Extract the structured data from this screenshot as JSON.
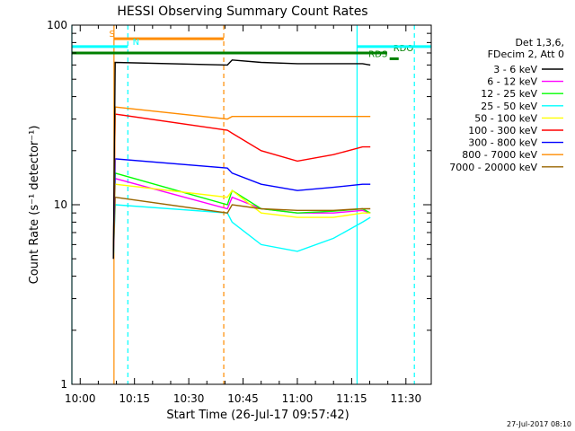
{
  "chart_data": {
    "type": "line",
    "title": "HESSI Observing Summary Count Rates",
    "xlabel": "Start Time (26-Jul-17 09:57:42)",
    "ylabel": "Count Rate (s⁻¹ detector⁻¹)",
    "yscale": "log",
    "ylim": [
      1,
      100
    ],
    "xlim_minutes": [
      "09:57:42",
      "11:37:00"
    ],
    "x_ticks": [
      "10:00",
      "10:15",
      "10:30",
      "10:45",
      "11:00",
      "11:15",
      "11:30"
    ],
    "y_ticks": [
      "1",
      "10",
      "100"
    ],
    "grid": false,
    "legend_position": "right",
    "legend_header": [
      "Det 1,3,6,",
      "FDecim 2, Att 0"
    ],
    "series": [
      {
        "name": "3 - 6 keV",
        "color": "#000000",
        "x": [
          "10:09:10",
          "10:09:40",
          "10:40:40",
          "10:42",
          "10:50",
          "11:00",
          "11:10",
          "11:18",
          "11:20:10"
        ],
        "values": [
          5,
          62,
          60,
          64,
          62,
          61,
          61,
          61,
          60
        ]
      },
      {
        "name": "6 - 12 keV",
        "color": "#ff00ff",
        "x": [
          "10:09:10",
          "10:09:40",
          "10:40:40",
          "10:42",
          "10:50",
          "11:00",
          "11:10",
          "11:18",
          "11:20:10"
        ],
        "values": [
          5,
          14,
          9.5,
          11,
          9.5,
          9,
          9,
          9.3,
          9
        ]
      },
      {
        "name": "12 - 25 keV",
        "color": "#00ff00",
        "x": [
          "10:09:10",
          "10:09:40",
          "10:40:40",
          "10:42",
          "10:50",
          "11:00",
          "11:10",
          "11:18",
          "11:20:10"
        ],
        "values": [
          5,
          15,
          10,
          12,
          9.5,
          9,
          9.2,
          9.5,
          9
        ]
      },
      {
        "name": "25 - 50 keV",
        "color": "#00ffff",
        "x": [
          "10:09:10",
          "10:09:40",
          "10:40:40",
          "10:42",
          "10:50",
          "11:00",
          "11:10",
          "11:18",
          "11:20:10"
        ],
        "values": [
          5,
          10,
          9,
          8,
          6,
          5.5,
          6.5,
          8,
          8.5
        ]
      },
      {
        "name": "50 - 100 keV",
        "color": "#ffff00",
        "x": [
          "10:09:10",
          "10:09:40",
          "10:40:40",
          "10:42",
          "10:50",
          "11:00",
          "11:10",
          "11:18",
          "11:20:10"
        ],
        "values": [
          5,
          13,
          11,
          12,
          9,
          8.5,
          8.5,
          9,
          9
        ]
      },
      {
        "name": "100 - 300 keV",
        "color": "#ff0000",
        "x": [
          "10:09:10",
          "10:09:40",
          "10:40:40",
          "10:42",
          "10:50",
          "11:00",
          "11:10",
          "11:18",
          "11:20:10"
        ],
        "values": [
          5,
          32,
          26,
          25,
          20,
          17.5,
          19,
          21,
          21
        ]
      },
      {
        "name": "300 - 800 keV",
        "color": "#0000ff",
        "x": [
          "10:09:10",
          "10:09:40",
          "10:40:40",
          "10:42",
          "10:50",
          "11:00",
          "11:10",
          "11:18",
          "11:20:10"
        ],
        "values": [
          5,
          18,
          16,
          15,
          13,
          12,
          12.5,
          13,
          13
        ]
      },
      {
        "name": "800 - 7000 keV",
        "color": "#ff8c00",
        "x": [
          "10:09:10",
          "10:09:40",
          "10:40:40",
          "10:42",
          "10:50",
          "11:00",
          "11:10",
          "11:18",
          "11:20:10"
        ],
        "values": [
          5,
          35,
          30,
          31,
          31,
          31,
          31,
          31,
          31
        ]
      },
      {
        "name": "7000 - 20000 keV",
        "color": "#996600",
        "x": [
          "10:09:10",
          "10:09:40",
          "10:40:40",
          "10:42",
          "10:50",
          "11:00",
          "11:10",
          "11:18",
          "11:20:10"
        ],
        "values": [
          5,
          11,
          9,
          10,
          9.5,
          9.3,
          9.3,
          9.5,
          9.5
        ]
      }
    ],
    "flags": [
      {
        "label": "S",
        "color": "#ff8c00",
        "y_value": 84,
        "x_start": "10:09:20",
        "x_end": "10:39:40",
        "label_x": "10:08:00"
      },
      {
        "label": "N",
        "color": "#00ffff",
        "y_value": 76,
        "x_start": "09:57:42",
        "x_end": "10:13:10",
        "label_x": "10:14:30"
      },
      {
        "label": "RDO",
        "color": "#008000",
        "y_value": 70,
        "x_start": "09:57:42",
        "x_end": "11:24:50",
        "label_x": "11:26:30"
      },
      {
        "label": "RDS",
        "color": "#008000",
        "y_value": 65,
        "x_start": "11:25:30",
        "x_end": "11:28:00",
        "label_x": "11:19:40"
      }
    ],
    "flag_lines": [
      {
        "label": "N",
        "color": "#00ffff",
        "y_value": 76,
        "x_start": "11:16:30",
        "x_end": "11:37:00"
      }
    ],
    "vertical_markers": [
      {
        "color": "#00ffff",
        "style": "solid",
        "x": "09:57:42"
      },
      {
        "color": "#ff8c00",
        "style": "solid",
        "x": "10:09:20"
      },
      {
        "color": "#00ffff",
        "style": "dashed",
        "x": "10:13:10"
      },
      {
        "color": "#ff8c00",
        "style": "dashed",
        "x": "10:39:40"
      },
      {
        "color": "#00ffff",
        "style": "solid",
        "x": "11:16:30"
      },
      {
        "color": "#00ffff",
        "style": "dashed",
        "x": "11:32:20"
      }
    ],
    "footer": "27-Jul-2017 08:10"
  }
}
